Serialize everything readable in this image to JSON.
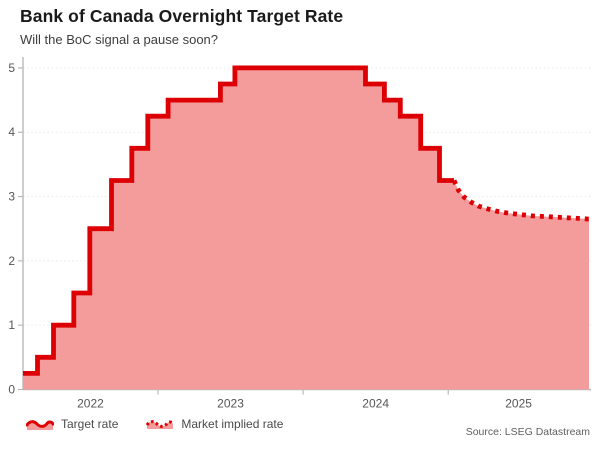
{
  "header": {
    "title": "Bank of Canada Overnight Target Rate",
    "subtitle": "Will the BoC signal a pause soon?"
  },
  "footer": {
    "source": "Source: LSEG Datastream"
  },
  "legend": {
    "items": [
      {
        "label": "Target rate",
        "style": "solid"
      },
      {
        "label": "Market implied rate",
        "style": "dotted"
      }
    ]
  },
  "colors": {
    "line_red": "#dc0004",
    "fill_pink": "#f49b9b",
    "axis_gray": "#b9b9b9",
    "grid_gray": "#e8e8e8",
    "tick_text": "#555555"
  },
  "chart_data": {
    "type": "line",
    "title": "Bank of Canada Overnight Target Rate",
    "subtitle": "Will the BoC signal a pause soon?",
    "x_domain": [
      2022.07,
      2025.97
    ],
    "ylim": [
      0,
      5.17
    ],
    "y_ticks": [
      0,
      1,
      2,
      3,
      4,
      5
    ],
    "year_boundary_ticks": [
      2023,
      2024,
      2025
    ],
    "year_labels": [
      {
        "year": "2022",
        "span": [
          2022.07,
          2023
        ]
      },
      {
        "year": "2023",
        "span": [
          2023,
          2024
        ]
      },
      {
        "year": "2024",
        "span": [
          2024,
          2025
        ]
      },
      {
        "year": "2025",
        "span": [
          2025,
          2025.97
        ]
      }
    ],
    "grid": "horizontal-dotted",
    "legend_position": "bottom-left",
    "series": [
      {
        "name": "Target rate",
        "type": "step",
        "line_style": "solid",
        "points": [
          [
            2022.07,
            0.25
          ],
          [
            2022.17,
            0.5
          ],
          [
            2022.28,
            1.0
          ],
          [
            2022.42,
            1.5
          ],
          [
            2022.53,
            2.5
          ],
          [
            2022.68,
            3.25
          ],
          [
            2022.82,
            3.75
          ],
          [
            2022.93,
            4.25
          ],
          [
            2023.07,
            4.5
          ],
          [
            2023.43,
            4.75
          ],
          [
            2023.53,
            5.0
          ],
          [
            2024.43,
            4.75
          ],
          [
            2024.56,
            4.5
          ],
          [
            2024.67,
            4.25
          ],
          [
            2024.81,
            3.75
          ],
          [
            2024.94,
            3.25
          ]
        ],
        "end_x": 2025.04
      },
      {
        "name": "Market implied rate",
        "type": "line",
        "line_style": "dotted",
        "points": [
          [
            2025.04,
            3.25
          ],
          [
            2025.07,
            3.1
          ],
          [
            2025.11,
            2.99
          ],
          [
            2025.16,
            2.91
          ],
          [
            2025.21,
            2.85
          ],
          [
            2025.27,
            2.81
          ],
          [
            2025.34,
            2.77
          ],
          [
            2025.42,
            2.74
          ],
          [
            2025.5,
            2.72
          ],
          [
            2025.58,
            2.7
          ],
          [
            2025.66,
            2.69
          ],
          [
            2025.74,
            2.68
          ],
          [
            2025.82,
            2.67
          ],
          [
            2025.9,
            2.66
          ],
          [
            2025.97,
            2.65
          ]
        ]
      }
    ]
  }
}
